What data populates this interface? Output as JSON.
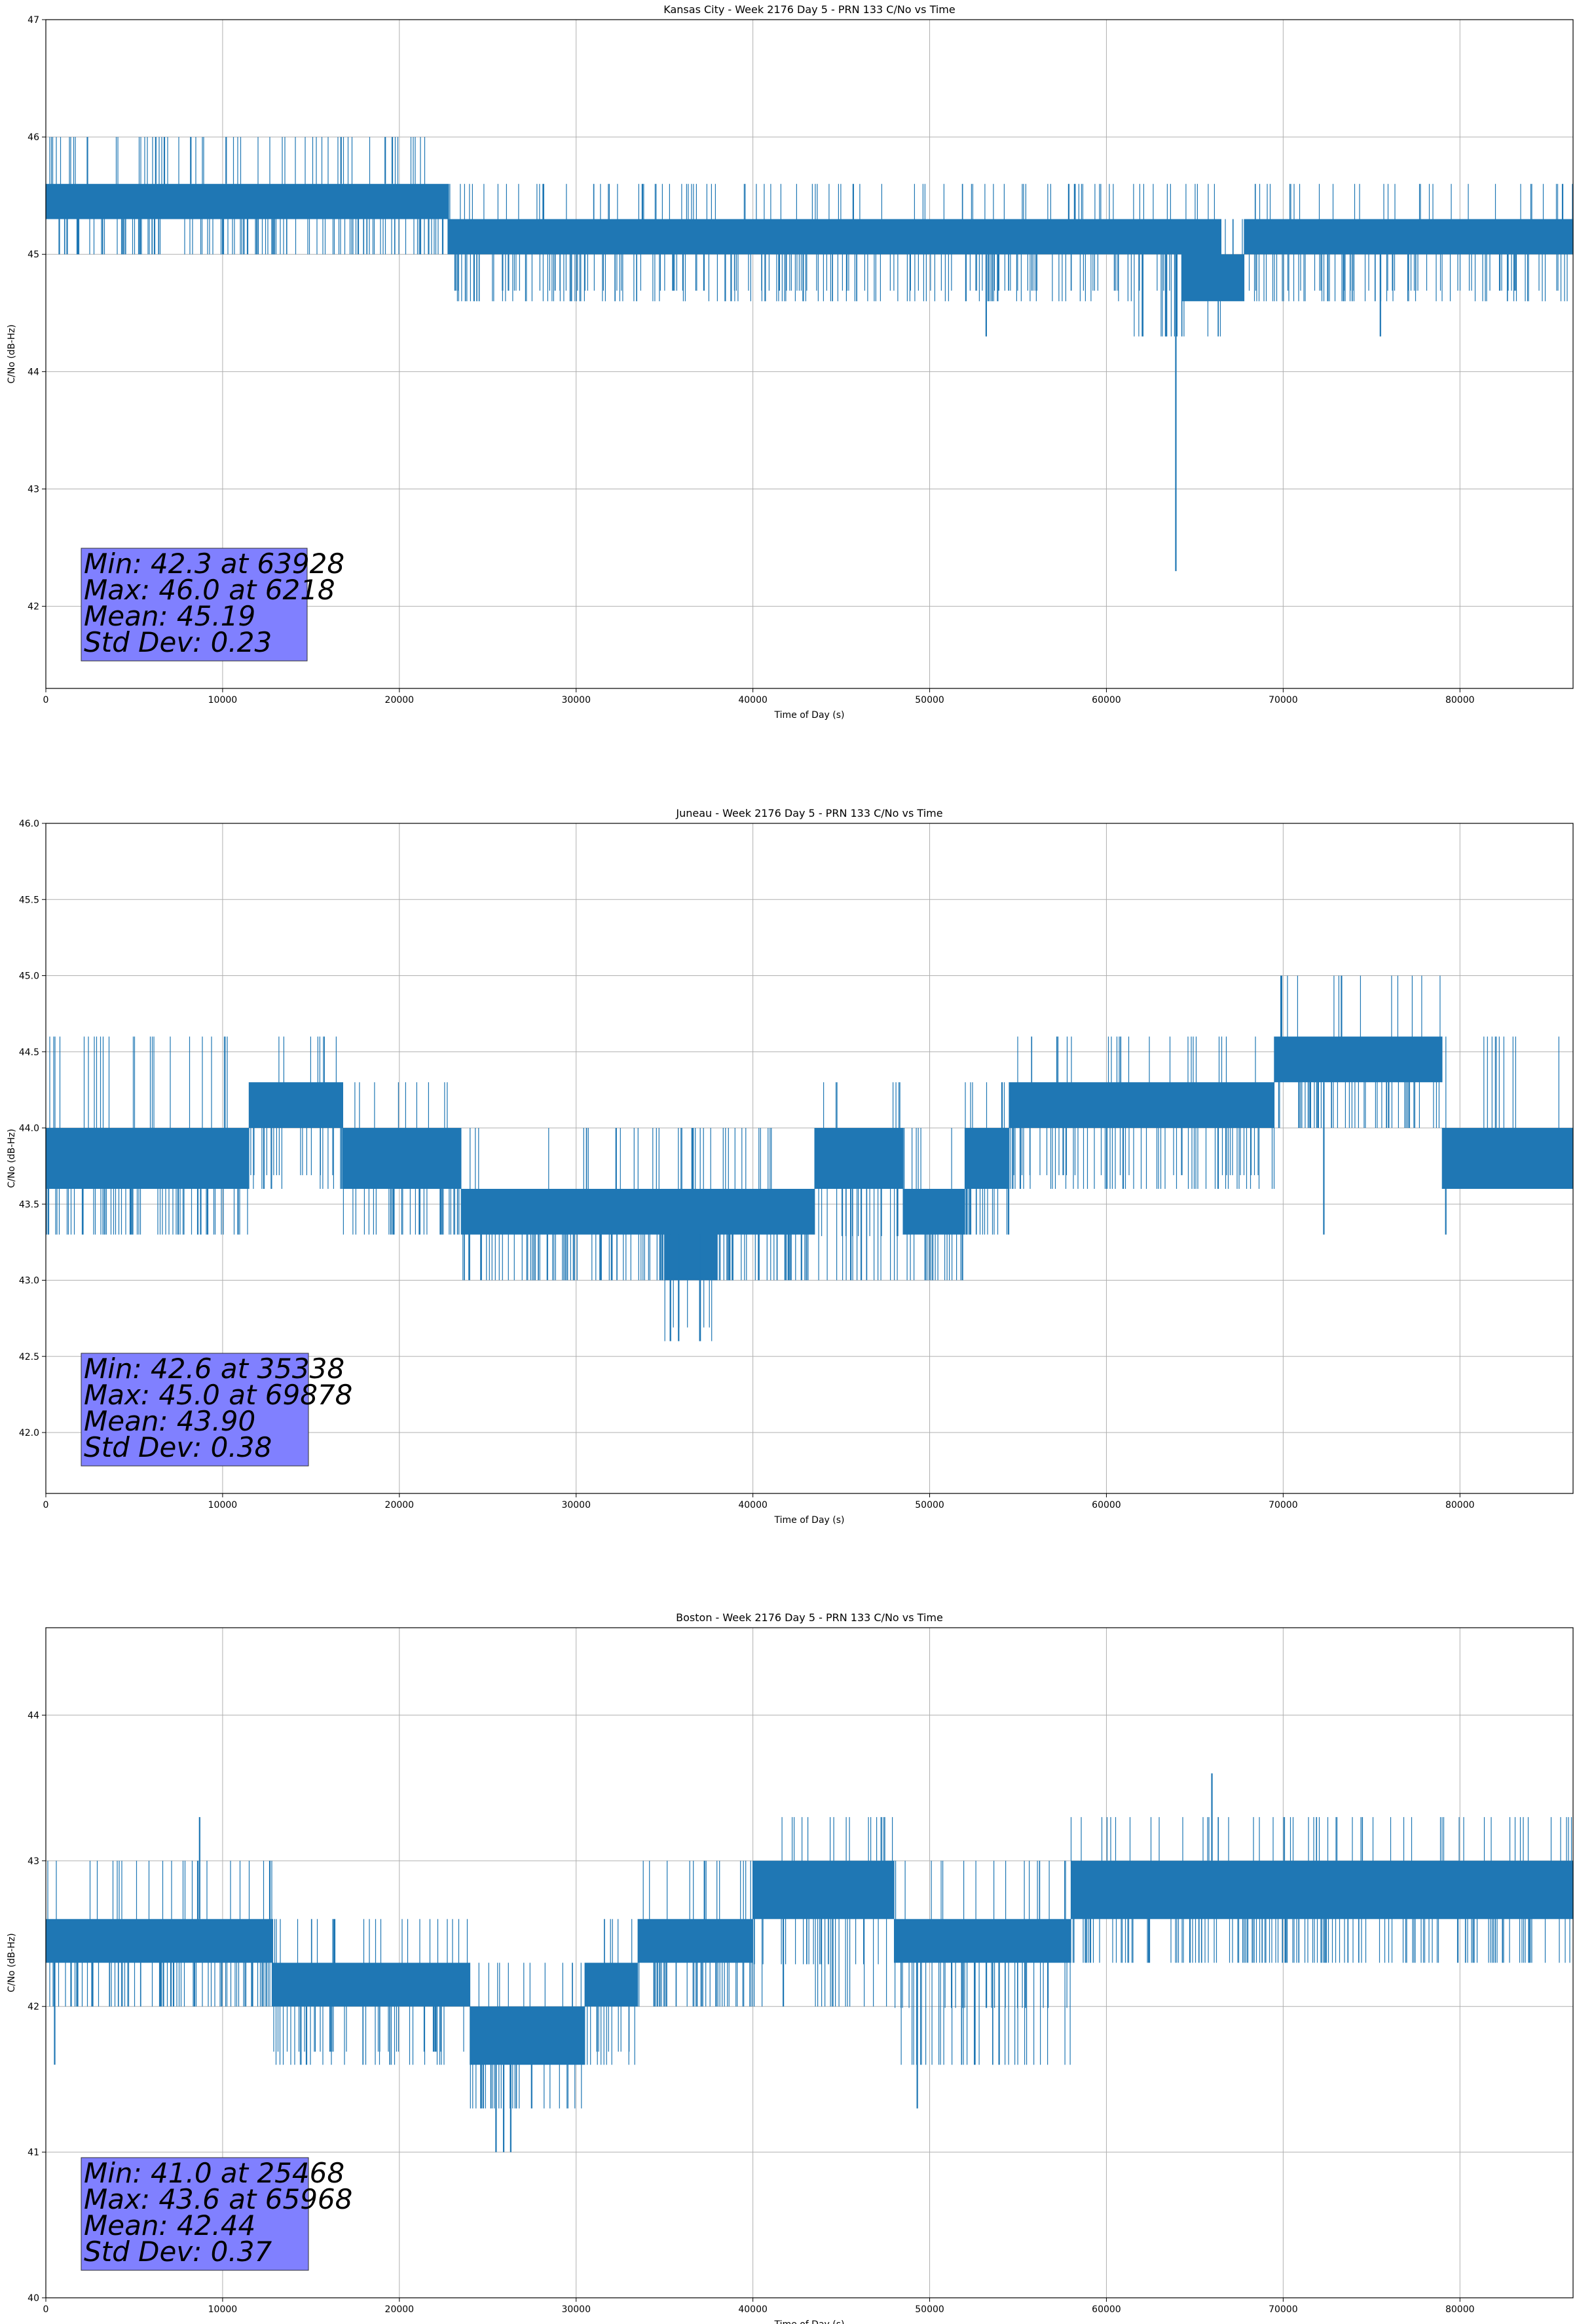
{
  "figure": {
    "colors": {
      "line": "#1f77b4",
      "grid": "#b0b0b0",
      "stats_box": "#8080ff",
      "axes": "#000000"
    }
  },
  "chart_data": [
    {
      "type": "line",
      "title": "Kansas City - Week 2176 Day 5 - PRN 133 C/No vs Time",
      "xlabel": "Time of Day (s)",
      "ylabel": "C/No (dB-Hz)",
      "xlim": [
        0,
        86400
      ],
      "ylim": [
        41.3,
        47
      ],
      "xticks": [
        0,
        10000,
        20000,
        30000,
        40000,
        50000,
        60000,
        70000,
        80000
      ],
      "yticks": [
        42,
        43,
        44,
        45,
        46,
        47
      ],
      "grid": true,
      "series": [
        {
          "quantization_step": 0.31,
          "segments": [
            {
              "x": [
                0,
                21600
              ],
              "base": [
                45.3,
                45.6
              ],
              "down_to": 45.0,
              "up_to": 46.0
            },
            {
              "x": [
                21600,
                22800
              ],
              "base": [
                45.3,
                45.6
              ],
              "down_to": 45.0,
              "up_to": 45.6
            },
            {
              "x": [
                22800,
                61500
              ],
              "base": [
                45.0,
                45.3
              ],
              "down_to": 44.6,
              "up_to": 45.6
            },
            {
              "x": [
                61500,
                66500
              ],
              "base": [
                45.0,
                45.3
              ],
              "down_to": 44.3,
              "up_to": 45.6
            },
            {
              "x": [
                64300,
                67800
              ],
              "base": [
                44.6,
                45.0
              ],
              "down_to": 44.6,
              "up_to": 45.3
            },
            {
              "x": [
                67800,
                86400
              ],
              "base": [
                45.0,
                45.3
              ],
              "down_to": 44.6,
              "up_to": 45.6
            }
          ],
          "spikes": [
            {
              "x": 63928,
              "y": 42.3
            },
            {
              "x": 6218,
              "y": 46.0
            },
            {
              "x": 8200,
              "y": 46.0
            },
            {
              "x": 10200,
              "y": 46.0
            },
            {
              "x": 16700,
              "y": 46.0
            },
            {
              "x": 19200,
              "y": 46.0
            },
            {
              "x": 19600,
              "y": 46.0
            },
            {
              "x": 53200,
              "y": 44.3
            },
            {
              "x": 63400,
              "y": 44.3
            },
            {
              "x": 75500,
              "y": 44.3
            }
          ]
        }
      ],
      "stats": [
        "Min: 42.3 at 63928",
        "Max: 46.0 at 6218",
        "Mean: 45.19",
        "Std Dev: 0.23"
      ]
    },
    {
      "type": "line",
      "title": "Juneau - Week 2176 Day 5 - PRN 133 C/No vs Time",
      "xlabel": "Time of Day (s)",
      "ylabel": "C/No (dB-Hz)",
      "xlim": [
        0,
        86400
      ],
      "ylim": [
        41.6,
        46
      ],
      "xticks": [
        0,
        10000,
        20000,
        30000,
        40000,
        50000,
        60000,
        70000,
        80000
      ],
      "yticks": [
        42.0,
        42.5,
        43.0,
        43.5,
        44.0,
        44.5,
        45.0,
        45.5,
        46.0
      ],
      "ytick_labels": [
        "42.0",
        "42.5",
        "43.0",
        "43.5",
        "44.0",
        "44.5",
        "45.0",
        "45.5",
        "46.0"
      ],
      "grid": true,
      "series": [
        {
          "quantization_step": 0.31,
          "segments": [
            {
              "x": [
                0,
                11500
              ],
              "base": [
                43.6,
                44.0
              ],
              "down_to": 43.3,
              "up_to": 44.6
            },
            {
              "x": [
                11500,
                16800
              ],
              "base": [
                44.0,
                44.3
              ],
              "down_to": 43.6,
              "up_to": 44.6
            },
            {
              "x": [
                16800,
                23500
              ],
              "base": [
                43.6,
                44.0
              ],
              "down_to": 43.3,
              "up_to": 44.3
            },
            {
              "x": [
                23500,
                43500
              ],
              "base": [
                43.3,
                43.6
              ],
              "down_to": 43.0,
              "up_to": 44.0
            },
            {
              "x": [
                35000,
                38000
              ],
              "base": [
                43.0,
                43.6
              ],
              "down_to": 42.6,
              "up_to": 44.0
            },
            {
              "x": [
                43500,
                48500
              ],
              "base": [
                43.6,
                44.0
              ],
              "down_to": 43.0,
              "up_to": 44.3
            },
            {
              "x": [
                48500,
                52000
              ],
              "base": [
                43.3,
                43.6
              ],
              "down_to": 43.0,
              "up_to": 44.0
            },
            {
              "x": [
                52000,
                54500
              ],
              "base": [
                43.6,
                44.0
              ],
              "down_to": 43.3,
              "up_to": 44.3
            },
            {
              "x": [
                54500,
                69500
              ],
              "base": [
                44.0,
                44.3
              ],
              "down_to": 43.6,
              "up_to": 44.6
            },
            {
              "x": [
                69500,
                79000
              ],
              "base": [
                44.3,
                44.6
              ],
              "down_to": 44.0,
              "up_to": 45.0
            },
            {
              "x": [
                79000,
                86400
              ],
              "base": [
                43.6,
                44.0
              ],
              "down_to": 43.6,
              "up_to": 44.6
            }
          ],
          "spikes": [
            {
              "x": 35338,
              "y": 42.6
            },
            {
              "x": 35800,
              "y": 42.6
            },
            {
              "x": 37000,
              "y": 42.6
            },
            {
              "x": 69878,
              "y": 45.0
            },
            {
              "x": 72300,
              "y": 43.3
            },
            {
              "x": 79200,
              "y": 43.3
            }
          ]
        }
      ],
      "stats": [
        "Min: 42.6 at 35338",
        "Max: 45.0 at 69878",
        "Mean: 43.90",
        "Std Dev: 0.38"
      ]
    },
    {
      "type": "line",
      "title": "Boston - Week 2176 Day 5 - PRN 133 C/No vs Time",
      "xlabel": "Time of Day (s)",
      "ylabel": "C/No (dB-Hz)",
      "xlim": [
        0,
        86400
      ],
      "ylim": [
        40,
        44.6
      ],
      "xticks": [
        0,
        10000,
        20000,
        30000,
        40000,
        50000,
        60000,
        70000,
        80000
      ],
      "yticks": [
        40,
        41,
        42,
        43,
        44
      ],
      "grid": true,
      "series": [
        {
          "quantization_step": 0.31,
          "segments": [
            {
              "x": [
                0,
                12800
              ],
              "base": [
                42.3,
                42.6
              ],
              "down_to": 42.0,
              "up_to": 43.0
            },
            {
              "x": [
                12800,
                24000
              ],
              "base": [
                42.0,
                42.3
              ],
              "down_to": 41.6,
              "up_to": 42.6
            },
            {
              "x": [
                24000,
                30500
              ],
              "base": [
                41.6,
                42.0
              ],
              "down_to": 41.3,
              "up_to": 42.3
            },
            {
              "x": [
                30500,
                33500
              ],
              "base": [
                42.0,
                42.3
              ],
              "down_to": 41.6,
              "up_to": 42.6
            },
            {
              "x": [
                33500,
                40000
              ],
              "base": [
                42.3,
                42.6
              ],
              "down_to": 42.0,
              "up_to": 43.0
            },
            {
              "x": [
                40000,
                48000
              ],
              "base": [
                42.6,
                43.0
              ],
              "down_to": 42.0,
              "up_to": 43.3
            },
            {
              "x": [
                48000,
                58000
              ],
              "base": [
                42.3,
                42.6
              ],
              "down_to": 41.6,
              "up_to": 43.0
            },
            {
              "x": [
                58000,
                86400
              ],
              "base": [
                42.6,
                43.0
              ],
              "down_to": 42.3,
              "up_to": 43.3
            }
          ],
          "spikes": [
            {
              "x": 25468,
              "y": 41.0
            },
            {
              "x": 25900,
              "y": 41.0
            },
            {
              "x": 26300,
              "y": 41.0
            },
            {
              "x": 65968,
              "y": 43.6
            },
            {
              "x": 500,
              "y": 41.6
            },
            {
              "x": 49300,
              "y": 41.3
            },
            {
              "x": 8700,
              "y": 43.3
            }
          ]
        }
      ],
      "stats": [
        "Min: 41.0 at 25468",
        "Max: 43.6 at 65968",
        "Mean: 42.44",
        "Std Dev: 0.37"
      ]
    }
  ]
}
